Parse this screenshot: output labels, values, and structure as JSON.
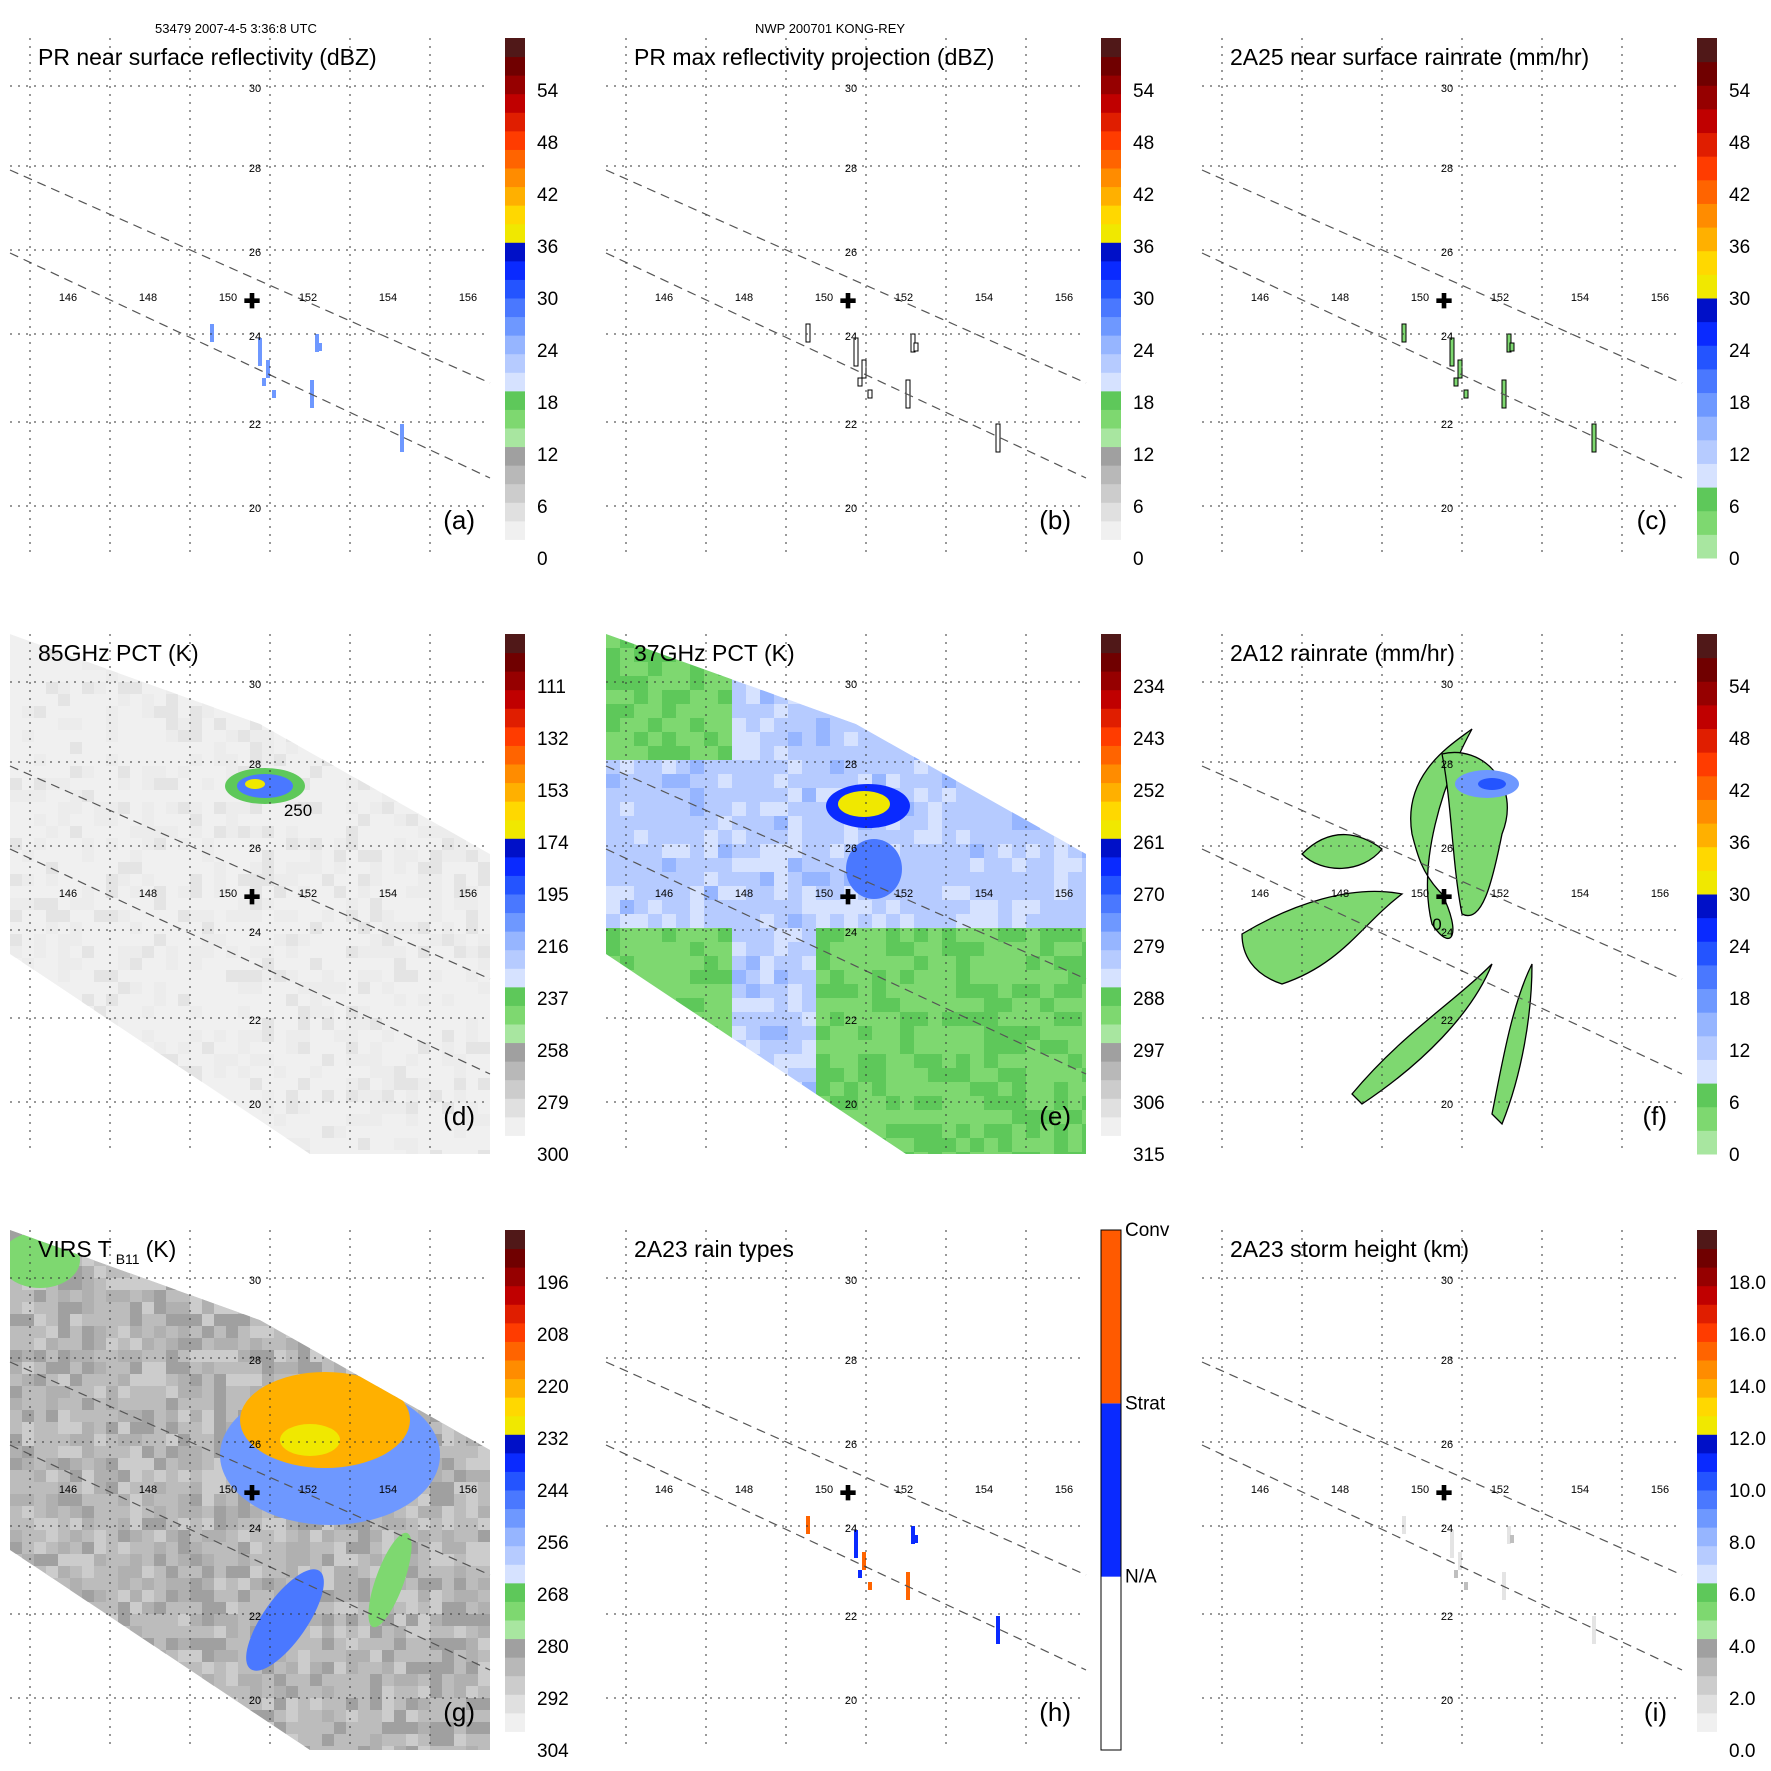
{
  "header": {
    "left": "53479 2007-4-5 3:36:8 UTC",
    "center": "NWP 200701 KONG-REY"
  },
  "colors": {
    "greys": [
      "#ffffff",
      "#f2f2f2",
      "#e4e4e4",
      "#d2d2d2",
      "#bfbfbf",
      "#aaaaaa"
    ],
    "greens": [
      "#a8e6a0",
      "#7ed870",
      "#5ec85a"
    ],
    "blues": [
      "#d6e2ff",
      "#b6cbff",
      "#96b5ff",
      "#6e98ff",
      "#4a78ff",
      "#2454ff",
      "#0a2aff",
      "#0010c8"
    ],
    "warm": [
      "#f0e800",
      "#ffd800",
      "#ffb000",
      "#ff8c00",
      "#ff6400",
      "#ff3c00",
      "#e01e00",
      "#c00000",
      "#960000",
      "#700000",
      "#501818"
    ]
  },
  "panels": [
    {
      "id": "a",
      "title": "PR near surface reflectivity (dBZ)",
      "label": "(a)",
      "colorbar": [
        "0",
        "6",
        "12",
        "18",
        "24",
        "30",
        "36",
        "42",
        "48",
        "54"
      ]
    },
    {
      "id": "b",
      "title": "PR max reflectivity projection (dBZ)",
      "label": "(b)",
      "colorbar": [
        "0",
        "6",
        "12",
        "18",
        "24",
        "30",
        "36",
        "42",
        "48",
        "54"
      ]
    },
    {
      "id": "c",
      "title": "2A25 near surface rainrate (mm/hr)",
      "label": "(c)",
      "colorbar": [
        "0",
        "6",
        "12",
        "18",
        "24",
        "30",
        "36",
        "42",
        "48",
        "54"
      ]
    },
    {
      "id": "d",
      "title": "85GHz PCT (K)",
      "label": "(d)",
      "colorbar": [
        "300",
        "279",
        "258",
        "237",
        "216",
        "195",
        "174",
        "153",
        "132",
        "111"
      ],
      "contour_label": "250"
    },
    {
      "id": "e",
      "title": "37GHz PCT (K)",
      "label": "(e)",
      "colorbar": [
        "315",
        "306",
        "297",
        "288",
        "279",
        "270",
        "261",
        "252",
        "243",
        "234"
      ]
    },
    {
      "id": "f",
      "title": "2A12 rainrate (mm/hr)",
      "label": "(f)",
      "colorbar": [
        "0",
        "6",
        "12",
        "18",
        "24",
        "30",
        "36",
        "42",
        "48",
        "54"
      ],
      "contour_label": "0"
    },
    {
      "id": "g",
      "title": "VIRS T",
      "title_sub": "B11",
      "title_unit": "(K)",
      "label": "(g)",
      "colorbar": [
        "304",
        "292",
        "280",
        "268",
        "256",
        "244",
        "232",
        "220",
        "208",
        "196"
      ]
    },
    {
      "id": "h",
      "title": "2A23 rain types",
      "label": "(h)",
      "colorbar_categories": [
        "N/A",
        "Strat",
        "Conv"
      ]
    },
    {
      "id": "i",
      "title": "2A23 storm height (km)",
      "label": "(i)",
      "colorbar": [
        "0.0",
        "2.0",
        "4.0",
        "6.0",
        "8.0",
        "10.0",
        "12.0",
        "14.0",
        "16.0",
        "18.0"
      ]
    }
  ],
  "grid": {
    "lon_labels": [
      "146",
      "148",
      "150",
      "152",
      "154",
      "156"
    ],
    "lat_labels": [
      "20",
      "22",
      "24",
      "26",
      "28",
      "30"
    ]
  }
}
